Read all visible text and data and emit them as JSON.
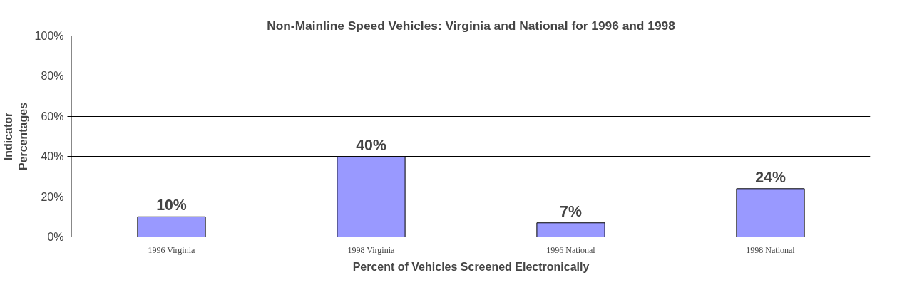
{
  "chart_data": {
    "type": "bar",
    "title": "Non-Mainline Speed Vehicles: Virginia and National for 1996 and 1998",
    "xlabel": "Percent of Vehicles Screened Electronically",
    "ylabel": "Indicator\nPercentages",
    "categories": [
      "1996 Virginia",
      "1998 Virginia",
      "1996 National",
      "1998 National"
    ],
    "values": [
      10,
      40,
      7,
      24
    ],
    "color": "#9999ff",
    "value_labels": [
      "10%",
      "40%",
      "7%",
      "24%"
    ],
    "ylim": [
      0,
      100
    ],
    "yticks": [
      {
        "value": 0,
        "label": "0%"
      },
      {
        "value": 20,
        "label": "20%"
      },
      {
        "value": 40,
        "label": "40%"
      },
      {
        "value": 60,
        "label": "60%"
      },
      {
        "value": 80,
        "label": "80%"
      },
      {
        "value": 100,
        "label": "100%"
      }
    ],
    "grid": "y"
  }
}
